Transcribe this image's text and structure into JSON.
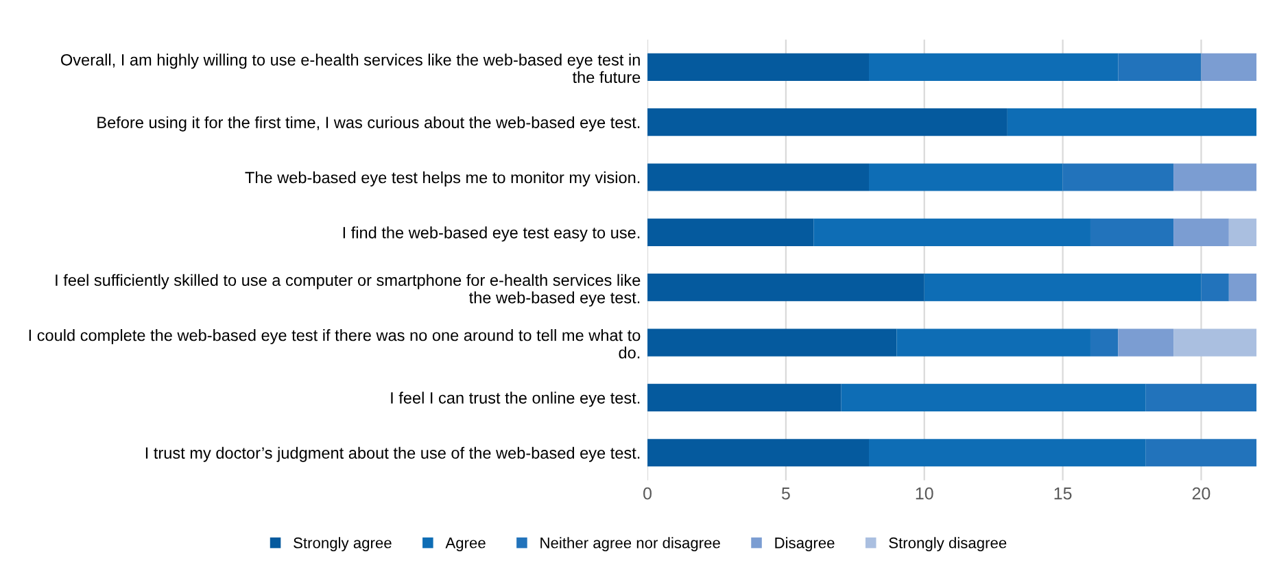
{
  "chart_data": {
    "type": "bar",
    "orientation": "horizontal",
    "stacked": true,
    "categories": [
      "Overall, I am highly willing to use e-health services like the web-based eye test in the future",
      "Before using it for the first time, I was curious about the web-based eye test.",
      "The web-based eye test helps me to monitor my vision.",
      "I find the web-based eye test easy to use.",
      "I feel sufficiently skilled to use a computer or smartphone for e-health services like the web-based eye test.",
      "I could complete the web-based eye test if there was no one around to tell me what to do.",
      "I feel I can trust the online eye test.",
      "I trust my doctor’s judgment about the use of the web-based eye test."
    ],
    "series": [
      {
        "name": "Strongly agree",
        "color": "#055a9e",
        "values": [
          8,
          13,
          8,
          6,
          10,
          9,
          7,
          8
        ]
      },
      {
        "name": "Agree",
        "color": "#0e6db5",
        "values": [
          9,
          9,
          7,
          10,
          10,
          7,
          11,
          10
        ]
      },
      {
        "name": "Neither agree nor disagree",
        "color": "#2273bb",
        "values": [
          3,
          0,
          4,
          3,
          1,
          1,
          4,
          4
        ]
      },
      {
        "name": "Disagree",
        "color": "#7b9dd2",
        "values": [
          2,
          0,
          3,
          2,
          1,
          2,
          0,
          0
        ]
      },
      {
        "name": "Strongly disagree",
        "color": "#aabfe0",
        "values": [
          0,
          0,
          0,
          1,
          0,
          3,
          0,
          0
        ]
      }
    ],
    "xlim": [
      0,
      22
    ],
    "xticks": [
      0,
      5,
      10,
      15,
      20
    ],
    "grid": "x",
    "legend": "bottom"
  }
}
